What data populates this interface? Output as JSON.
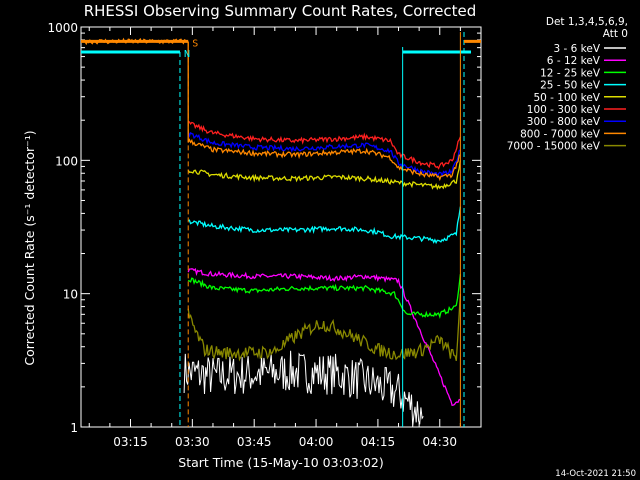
{
  "chart_data": {
    "type": "line",
    "title": "RHESSI Observing Summary Count Rates, Corrected",
    "xlabel": "Start Time (15-May-10 03:03:02)",
    "ylabel": "Corrected Count Rate (s⁻¹ detector⁻¹)",
    "y_scale": "log",
    "ylim": [
      1,
      1000
    ],
    "xlim": [
      "03:03",
      "04:40"
    ],
    "x_ticks": [
      "03:15",
      "03:30",
      "03:45",
      "04:00",
      "04:15",
      "04:30"
    ],
    "y_ticks": [
      "1",
      "10",
      "100",
      "1000"
    ],
    "legend_header": [
      "Det 1,3,4,5,6,9,",
      "Att 0"
    ],
    "legend_position": "right",
    "footer_date": "14-Oct-2021 21:50",
    "series": [
      {
        "name": "3 - 6 keV",
        "color": "#ffffff",
        "x": [
          "03:28",
          "03:35",
          "03:45",
          "03:55",
          "04:05",
          "04:12",
          "04:20",
          "04:26"
        ],
        "values": [
          2.6,
          2.4,
          2.5,
          2.6,
          2.5,
          2.2,
          1.8,
          1.2
        ]
      },
      {
        "name": "6 - 12 keV",
        "color": "#ff00ff",
        "x": [
          "03:29",
          "03:35",
          "03:45",
          "03:55",
          "04:05",
          "04:12",
          "04:20",
          "04:33",
          "04:35"
        ],
        "values": [
          15,
          14,
          13.5,
          13.5,
          13,
          13.5,
          12.5,
          1.5,
          1.6
        ]
      },
      {
        "name": "12 - 25 keV",
        "color": "#00ff00",
        "x": [
          "03:29",
          "03:35",
          "03:45",
          "03:55",
          "04:05",
          "04:12",
          "04:19",
          "04:22",
          "04:30",
          "04:34",
          "04:35"
        ],
        "values": [
          13,
          11,
          10.5,
          11,
          11,
          11,
          10,
          7,
          7,
          8,
          14
        ]
      },
      {
        "name": "25 - 50 keV",
        "color": "#00ffff",
        "x": [
          "03:29",
          "03:35",
          "03:45",
          "03:55",
          "04:05",
          "04:12",
          "04:15",
          "04:18",
          "04:25",
          "04:30",
          "04:34",
          "04:35"
        ],
        "values": [
          35,
          32,
          30,
          30,
          31,
          30,
          29,
          27,
          26,
          25,
          28,
          45
        ]
      },
      {
        "name": "50 - 100 keV",
        "color": "#dddd00",
        "x": [
          "03:29",
          "03:35",
          "03:45",
          "03:55",
          "04:05",
          "04:12",
          "04:20",
          "04:30",
          "04:34",
          "04:35"
        ],
        "values": [
          85,
          78,
          74,
          73,
          75,
          73,
          68,
          63,
          70,
          100
        ]
      },
      {
        "name": "100 - 300 keV",
        "color": "#ff2020",
        "x": [
          "03:29",
          "03:35",
          "03:45",
          "03:55",
          "04:05",
          "04:12",
          "04:18",
          "04:20",
          "04:26",
          "04:30",
          "04:33",
          "04:35"
        ],
        "values": [
          190,
          160,
          145,
          140,
          145,
          150,
          140,
          110,
          95,
          90,
          100,
          150
        ]
      },
      {
        "name": "300 - 800 keV",
        "color": "#0000ff",
        "x": [
          "03:29",
          "03:35",
          "03:45",
          "03:55",
          "04:05",
          "04:12",
          "04:18",
          "04:20",
          "04:26",
          "04:30",
          "04:33",
          "04:35"
        ],
        "values": [
          160,
          135,
          125,
          122,
          127,
          130,
          118,
          95,
          82,
          78,
          82,
          120
        ]
      },
      {
        "name": "800 - 7000 keV",
        "color": "#ff8800",
        "x": [
          "03:04",
          "03:29",
          "03:29",
          "03:35",
          "03:45",
          "03:55",
          "04:05",
          "04:12",
          "04:18",
          "04:20",
          "04:26",
          "04:30",
          "04:33",
          "04:35"
        ],
        "values": [
          780,
          780,
          140,
          120,
          113,
          110,
          115,
          118,
          105,
          88,
          78,
          75,
          78,
          110
        ]
      },
      {
        "name": "7000 - 15000 keV",
        "color": "#888800",
        "x": [
          "03:29",
          "03:31",
          "03:33",
          "03:37",
          "03:45",
          "03:50",
          "03:55",
          "04:01",
          "04:05",
          "04:10",
          "04:15",
          "04:20",
          "04:25",
          "04:30",
          "04:34",
          "04:35"
        ],
        "values": [
          7,
          5,
          3.8,
          3.6,
          3.6,
          3.7,
          4.8,
          6,
          5.5,
          4.6,
          3.8,
          3.5,
          3.7,
          4.5,
          3.2,
          10
        ]
      }
    ],
    "indicators": [
      {
        "label": "N",
        "color": "#00ffff",
        "level": 650,
        "x_start": "03:04",
        "x_end": "03:27"
      },
      {
        "label": "S",
        "color": "#ff8800",
        "level": 780,
        "x_start": "03:04",
        "x_end": "03:29"
      }
    ]
  }
}
